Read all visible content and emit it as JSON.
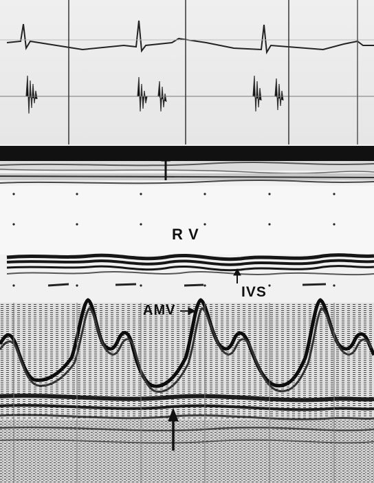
{
  "labels": {
    "rv": "R V",
    "ivs": "IVS",
    "amv": "AMV"
  }
}
